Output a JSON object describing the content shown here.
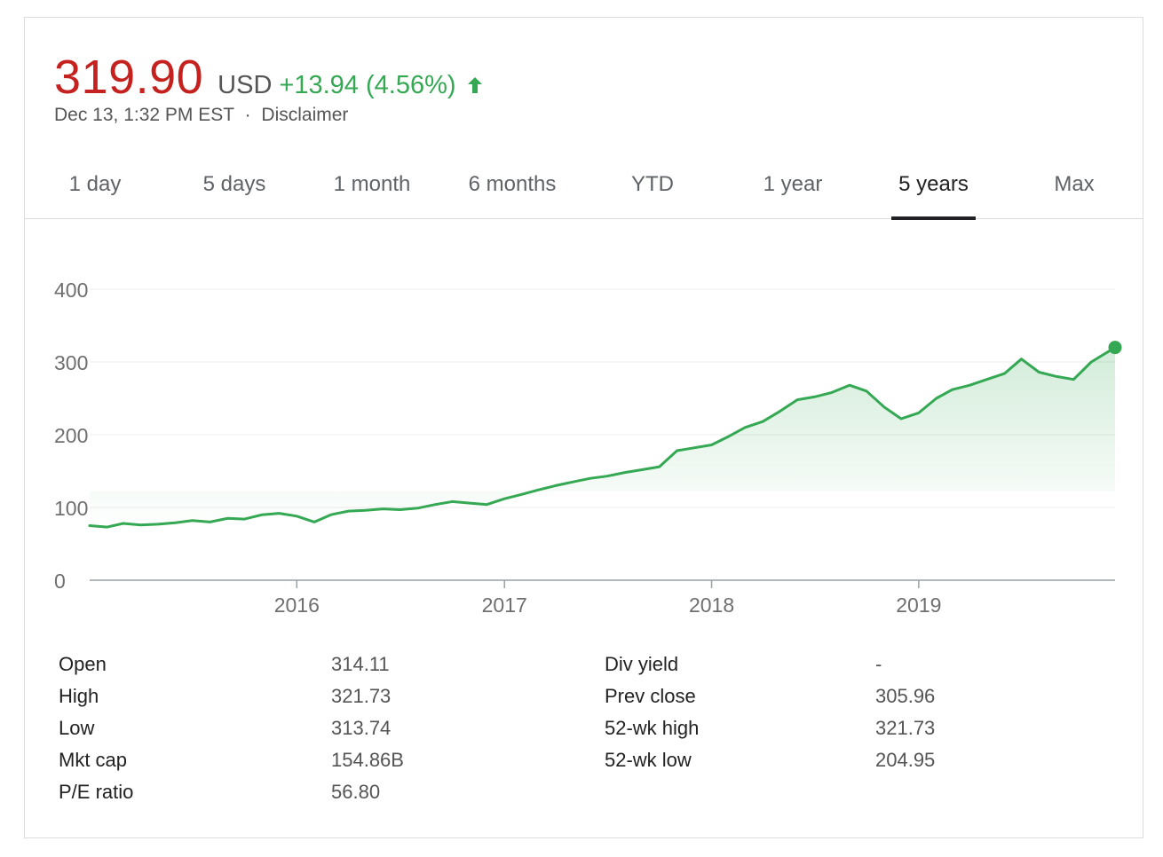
{
  "quote": {
    "price": "319.90",
    "currency": "USD",
    "change": "+13.94 (4.56%)",
    "timestamp": "Dec 13, 1:32 PM EST",
    "separator": "·",
    "disclaimer": "Disclaimer",
    "positive_color": "#34a853",
    "price_color": "#c5221f"
  },
  "tabs": [
    {
      "label": "1 day"
    },
    {
      "label": "5 days"
    },
    {
      "label": "1 month"
    },
    {
      "label": "6 months"
    },
    {
      "label": "YTD"
    },
    {
      "label": "1 year"
    },
    {
      "label": "5 years",
      "active": true
    },
    {
      "label": "Max"
    }
  ],
  "chart_data": {
    "type": "area",
    "line_color": "#34a853",
    "grid": true,
    "ylim": [
      0,
      400
    ],
    "y_ticks": [
      "400",
      "300",
      "200",
      "100",
      "0"
    ],
    "x_ticks": [
      "2016",
      "2017",
      "2018",
      "2019"
    ],
    "series": [
      {
        "values": [
          [
            "2015-01-01",
            75
          ],
          [
            "2015-02-01",
            73
          ],
          [
            "2015-03-01",
            78
          ],
          [
            "2015-04-01",
            76
          ],
          [
            "2015-05-01",
            77
          ],
          [
            "2015-06-01",
            79
          ],
          [
            "2015-07-01",
            82
          ],
          [
            "2015-08-01",
            80
          ],
          [
            "2015-09-01",
            85
          ],
          [
            "2015-10-01",
            84
          ],
          [
            "2015-11-01",
            90
          ],
          [
            "2015-12-01",
            92
          ],
          [
            "2016-01-01",
            88
          ],
          [
            "2016-02-01",
            80
          ],
          [
            "2016-03-01",
            90
          ],
          [
            "2016-04-01",
            95
          ],
          [
            "2016-05-01",
            96
          ],
          [
            "2016-06-01",
            98
          ],
          [
            "2016-07-01",
            97
          ],
          [
            "2016-08-01",
            99
          ],
          [
            "2016-09-01",
            104
          ],
          [
            "2016-10-01",
            108
          ],
          [
            "2016-11-01",
            106
          ],
          [
            "2016-12-01",
            104
          ],
          [
            "2017-01-01",
            112
          ],
          [
            "2017-02-01",
            118
          ],
          [
            "2017-03-01",
            124
          ],
          [
            "2017-04-01",
            130
          ],
          [
            "2017-05-01",
            135
          ],
          [
            "2017-06-01",
            140
          ],
          [
            "2017-07-01",
            143
          ],
          [
            "2017-08-01",
            148
          ],
          [
            "2017-09-01",
            152
          ],
          [
            "2017-10-01",
            156
          ],
          [
            "2017-11-01",
            178
          ],
          [
            "2017-12-01",
            182
          ],
          [
            "2018-01-01",
            186
          ],
          [
            "2018-02-01",
            198
          ],
          [
            "2018-03-01",
            210
          ],
          [
            "2018-04-01",
            218
          ],
          [
            "2018-05-01",
            232
          ],
          [
            "2018-06-01",
            248
          ],
          [
            "2018-07-01",
            252
          ],
          [
            "2018-08-01",
            258
          ],
          [
            "2018-09-01",
            268
          ],
          [
            "2018-10-01",
            260
          ],
          [
            "2018-11-01",
            238
          ],
          [
            "2018-12-01",
            222
          ],
          [
            "2019-01-01",
            230
          ],
          [
            "2019-02-01",
            250
          ],
          [
            "2019-03-01",
            262
          ],
          [
            "2019-04-01",
            268
          ],
          [
            "2019-05-01",
            276
          ],
          [
            "2019-06-01",
            284
          ],
          [
            "2019-07-01",
            304
          ],
          [
            "2019-08-01",
            286
          ],
          [
            "2019-09-01",
            280
          ],
          [
            "2019-10-01",
            276
          ],
          [
            "2019-11-01",
            300
          ],
          [
            "2019-12-13",
            319.9
          ]
        ]
      }
    ]
  },
  "stats": {
    "left": [
      {
        "label": "Open",
        "value": "314.11"
      },
      {
        "label": "High",
        "value": "321.73"
      },
      {
        "label": "Low",
        "value": "313.74"
      },
      {
        "label": "Mkt cap",
        "value": "154.86B"
      },
      {
        "label": "P/E ratio",
        "value": "56.80"
      }
    ],
    "right": [
      {
        "label": "Div yield",
        "value": "-"
      },
      {
        "label": "Prev close",
        "value": "305.96"
      },
      {
        "label": "52-wk high",
        "value": "321.73"
      },
      {
        "label": "52-wk low",
        "value": "204.95"
      }
    ]
  }
}
